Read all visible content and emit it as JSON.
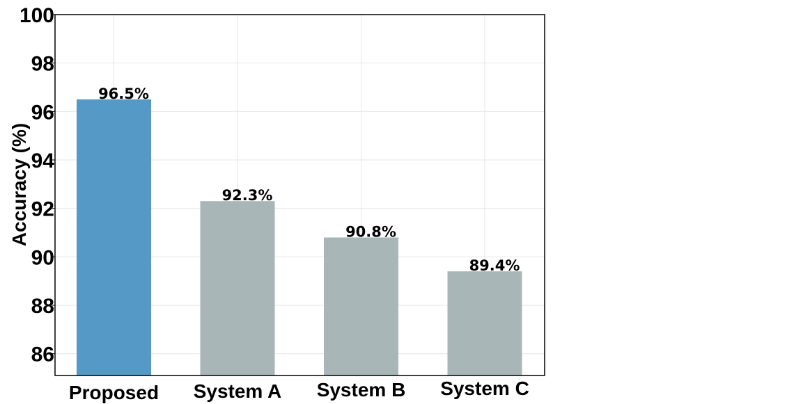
{
  "chart_data": {
    "type": "bar",
    "title": "",
    "xlabel": "",
    "ylabel": "Accuracy (%)",
    "categories": [
      "Proposed",
      "System A",
      "System B",
      "System C"
    ],
    "values": [
      96.5,
      92.3,
      90.8,
      89.4
    ],
    "data_labels": [
      "96.5%",
      "92.3%",
      "90.8%",
      "89.4%"
    ],
    "bar_colors": [
      "#5599c7",
      "#a9b6b7",
      "#a9b6b7",
      "#a9b6b7"
    ],
    "ylim": [
      85.1,
      100
    ],
    "yticks": [
      86,
      88,
      90,
      92,
      94,
      96,
      98,
      100
    ],
    "grid": true,
    "legend": "none"
  }
}
